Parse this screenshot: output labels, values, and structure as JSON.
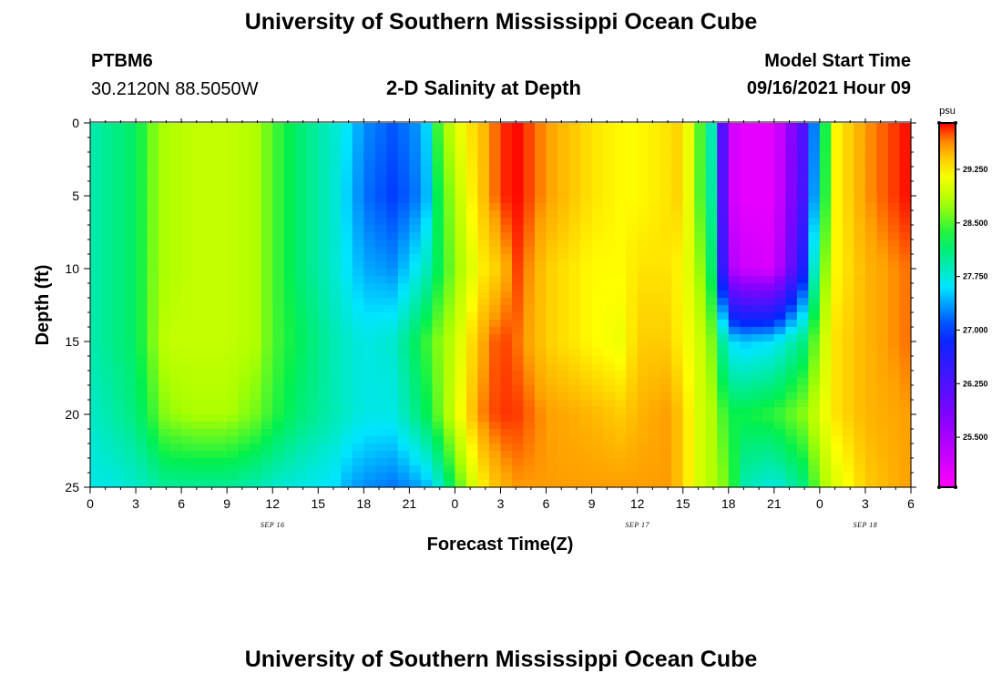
{
  "header": {
    "title": "University of Southern Mississippi Ocean Cube",
    "station_id": "PTBM6",
    "coordinates": "30.2120N  88.5050W",
    "model_start_label": "Model Start Time",
    "model_start_value": "09/16/2021 Hour 09"
  },
  "footer": {
    "title": "University of Southern Mississippi Ocean Cube"
  },
  "chart_data": {
    "type": "heatmap",
    "title": "2-D Salinity at Depth",
    "xlabel": "Forecast Time(Z)",
    "ylabel": "Depth (ft)",
    "x_range_hours": [
      0,
      54
    ],
    "y_range_ft": [
      0,
      25
    ],
    "y_inverted": true,
    "x_ticks": [
      "0",
      "3",
      "6",
      "9",
      "12",
      "15",
      "18",
      "21",
      "0",
      "3",
      "6",
      "9",
      "12",
      "15",
      "18",
      "21",
      "0",
      "3",
      "6"
    ],
    "y_ticks": [
      "0",
      "5",
      "10",
      "15",
      "20",
      "25"
    ],
    "date_labels": [
      {
        "text": "SEP 16",
        "hour": 12
      },
      {
        "text": "SEP 17",
        "hour": 36
      },
      {
        "text": "SEP 18",
        "hour": 51
      }
    ],
    "colorbar": {
      "unit": "psu",
      "min": 24.8,
      "max": 29.9,
      "ticks": [
        "29.250",
        "28.500",
        "27.750",
        "27.000",
        "26.250",
        "25.500"
      ],
      "tick_values": [
        29.25,
        28.5,
        27.75,
        27.0,
        26.25,
        25.5
      ]
    },
    "grid": false,
    "salinity_profiles": {
      "depths_ft": [
        0,
        5,
        10,
        15,
        20,
        25
      ],
      "times_hours": [
        0,
        1,
        3,
        4,
        5,
        7,
        9,
        11,
        12,
        14,
        16,
        17,
        18,
        20,
        22,
        23,
        24,
        25,
        26,
        27,
        28,
        30,
        33,
        35,
        36,
        38,
        39,
        40,
        41,
        42,
        43,
        45,
        47,
        48,
        49,
        51,
        54
      ],
      "values": [
        [
          27.9,
          27.9,
          27.9,
          27.9,
          27.8,
          27.7
        ],
        [
          28.0,
          28.0,
          28.0,
          28.0,
          27.9,
          27.7
        ],
        [
          28.2,
          28.2,
          28.2,
          28.2,
          28.1,
          27.8
        ],
        [
          28.6,
          28.6,
          28.6,
          28.6,
          28.4,
          27.9
        ],
        [
          28.8,
          28.8,
          28.8,
          28.9,
          28.7,
          28.0
        ],
        [
          28.9,
          28.9,
          28.9,
          28.9,
          28.8,
          28.0
        ],
        [
          28.9,
          28.9,
          28.9,
          28.9,
          28.8,
          28.0
        ],
        [
          28.8,
          28.8,
          28.8,
          28.8,
          28.6,
          27.9
        ],
        [
          28.5,
          28.5,
          28.5,
          28.5,
          28.4,
          27.8
        ],
        [
          28.1,
          28.1,
          28.1,
          28.2,
          28.1,
          27.7
        ],
        [
          27.8,
          27.8,
          27.8,
          27.9,
          27.9,
          27.6
        ],
        [
          27.6,
          27.5,
          27.6,
          27.8,
          27.8,
          27.4
        ],
        [
          27.3,
          27.2,
          27.4,
          27.7,
          27.7,
          27.3
        ],
        [
          27.1,
          27.0,
          27.3,
          27.8,
          27.7,
          27.2
        ],
        [
          27.4,
          27.3,
          27.8,
          28.4,
          28.2,
          27.4
        ],
        [
          28.6,
          28.4,
          28.3,
          28.7,
          28.6,
          27.8
        ],
        [
          29.0,
          28.8,
          28.7,
          28.9,
          29.0,
          28.4
        ],
        [
          29.3,
          29.2,
          29.0,
          29.3,
          29.4,
          28.9
        ],
        [
          29.5,
          29.5,
          29.3,
          29.6,
          29.7,
          29.3
        ],
        [
          29.8,
          29.8,
          29.4,
          29.8,
          29.8,
          29.5
        ],
        [
          29.9,
          29.9,
          29.8,
          29.7,
          29.8,
          29.6
        ],
        [
          29.6,
          29.6,
          29.4,
          29.4,
          29.6,
          29.6
        ],
        [
          29.3,
          29.3,
          29.2,
          29.2,
          29.5,
          29.6
        ],
        [
          29.2,
          29.2,
          29.2,
          29.1,
          29.4,
          29.6
        ],
        [
          29.2,
          29.2,
          29.3,
          29.4,
          29.5,
          29.6
        ],
        [
          29.3,
          29.3,
          29.3,
          29.4,
          29.6,
          29.6
        ],
        [
          29.4,
          29.4,
          29.2,
          29.2,
          29.4,
          29.4
        ],
        [
          28.6,
          28.6,
          28.8,
          29.0,
          29.0,
          29.0
        ],
        [
          27.8,
          27.9,
          28.1,
          28.6,
          28.8,
          28.8
        ],
        [
          25.2,
          25.2,
          25.5,
          27.6,
          28.3,
          28.6
        ],
        [
          25.0,
          25.0,
          25.2,
          27.5,
          28.3,
          27.9
        ],
        [
          25.0,
          25.0,
          25.1,
          27.6,
          28.4,
          27.7
        ],
        [
          26.3,
          26.4,
          26.8,
          28.1,
          28.7,
          28.1
        ],
        [
          27.8,
          27.9,
          28.4,
          28.8,
          29.0,
          28.7
        ],
        [
          29.2,
          29.2,
          29.2,
          29.3,
          29.3,
          29.0
        ],
        [
          29.6,
          29.6,
          29.5,
          29.5,
          29.5,
          29.4
        ],
        [
          29.9,
          29.9,
          29.7,
          29.7,
          29.6,
          29.6
        ]
      ]
    }
  }
}
